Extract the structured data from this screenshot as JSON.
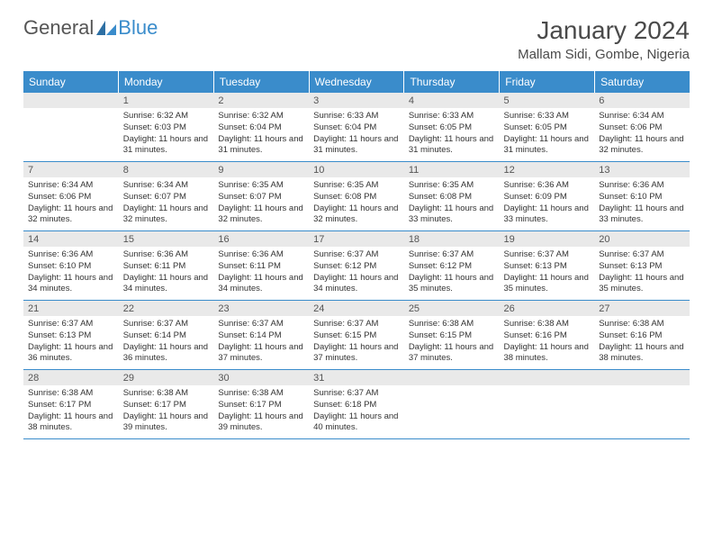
{
  "brand": {
    "general": "General",
    "blue": "Blue"
  },
  "header": {
    "title": "January 2024",
    "location": "Mallam Sidi, Gombe, Nigeria"
  },
  "colors": {
    "accent": "#3a8ccb",
    "day_bg": "#e9e9e9",
    "text": "#333333",
    "bg": "#ffffff"
  },
  "weekdays": [
    "Sunday",
    "Monday",
    "Tuesday",
    "Wednesday",
    "Thursday",
    "Friday",
    "Saturday"
  ],
  "month": {
    "start_weekday": 1,
    "num_days": 31
  },
  "days": {
    "1": {
      "sunrise": "Sunrise: 6:32 AM",
      "sunset": "Sunset: 6:03 PM",
      "daylight": "Daylight: 11 hours and 31 minutes."
    },
    "2": {
      "sunrise": "Sunrise: 6:32 AM",
      "sunset": "Sunset: 6:04 PM",
      "daylight": "Daylight: 11 hours and 31 minutes."
    },
    "3": {
      "sunrise": "Sunrise: 6:33 AM",
      "sunset": "Sunset: 6:04 PM",
      "daylight": "Daylight: 11 hours and 31 minutes."
    },
    "4": {
      "sunrise": "Sunrise: 6:33 AM",
      "sunset": "Sunset: 6:05 PM",
      "daylight": "Daylight: 11 hours and 31 minutes."
    },
    "5": {
      "sunrise": "Sunrise: 6:33 AM",
      "sunset": "Sunset: 6:05 PM",
      "daylight": "Daylight: 11 hours and 31 minutes."
    },
    "6": {
      "sunrise": "Sunrise: 6:34 AM",
      "sunset": "Sunset: 6:06 PM",
      "daylight": "Daylight: 11 hours and 32 minutes."
    },
    "7": {
      "sunrise": "Sunrise: 6:34 AM",
      "sunset": "Sunset: 6:06 PM",
      "daylight": "Daylight: 11 hours and 32 minutes."
    },
    "8": {
      "sunrise": "Sunrise: 6:34 AM",
      "sunset": "Sunset: 6:07 PM",
      "daylight": "Daylight: 11 hours and 32 minutes."
    },
    "9": {
      "sunrise": "Sunrise: 6:35 AM",
      "sunset": "Sunset: 6:07 PM",
      "daylight": "Daylight: 11 hours and 32 minutes."
    },
    "10": {
      "sunrise": "Sunrise: 6:35 AM",
      "sunset": "Sunset: 6:08 PM",
      "daylight": "Daylight: 11 hours and 32 minutes."
    },
    "11": {
      "sunrise": "Sunrise: 6:35 AM",
      "sunset": "Sunset: 6:08 PM",
      "daylight": "Daylight: 11 hours and 33 minutes."
    },
    "12": {
      "sunrise": "Sunrise: 6:36 AM",
      "sunset": "Sunset: 6:09 PM",
      "daylight": "Daylight: 11 hours and 33 minutes."
    },
    "13": {
      "sunrise": "Sunrise: 6:36 AM",
      "sunset": "Sunset: 6:10 PM",
      "daylight": "Daylight: 11 hours and 33 minutes."
    },
    "14": {
      "sunrise": "Sunrise: 6:36 AM",
      "sunset": "Sunset: 6:10 PM",
      "daylight": "Daylight: 11 hours and 34 minutes."
    },
    "15": {
      "sunrise": "Sunrise: 6:36 AM",
      "sunset": "Sunset: 6:11 PM",
      "daylight": "Daylight: 11 hours and 34 minutes."
    },
    "16": {
      "sunrise": "Sunrise: 6:36 AM",
      "sunset": "Sunset: 6:11 PM",
      "daylight": "Daylight: 11 hours and 34 minutes."
    },
    "17": {
      "sunrise": "Sunrise: 6:37 AM",
      "sunset": "Sunset: 6:12 PM",
      "daylight": "Daylight: 11 hours and 34 minutes."
    },
    "18": {
      "sunrise": "Sunrise: 6:37 AM",
      "sunset": "Sunset: 6:12 PM",
      "daylight": "Daylight: 11 hours and 35 minutes."
    },
    "19": {
      "sunrise": "Sunrise: 6:37 AM",
      "sunset": "Sunset: 6:13 PM",
      "daylight": "Daylight: 11 hours and 35 minutes."
    },
    "20": {
      "sunrise": "Sunrise: 6:37 AM",
      "sunset": "Sunset: 6:13 PM",
      "daylight": "Daylight: 11 hours and 35 minutes."
    },
    "21": {
      "sunrise": "Sunrise: 6:37 AM",
      "sunset": "Sunset: 6:13 PM",
      "daylight": "Daylight: 11 hours and 36 minutes."
    },
    "22": {
      "sunrise": "Sunrise: 6:37 AM",
      "sunset": "Sunset: 6:14 PM",
      "daylight": "Daylight: 11 hours and 36 minutes."
    },
    "23": {
      "sunrise": "Sunrise: 6:37 AM",
      "sunset": "Sunset: 6:14 PM",
      "daylight": "Daylight: 11 hours and 37 minutes."
    },
    "24": {
      "sunrise": "Sunrise: 6:37 AM",
      "sunset": "Sunset: 6:15 PM",
      "daylight": "Daylight: 11 hours and 37 minutes."
    },
    "25": {
      "sunrise": "Sunrise: 6:38 AM",
      "sunset": "Sunset: 6:15 PM",
      "daylight": "Daylight: 11 hours and 37 minutes."
    },
    "26": {
      "sunrise": "Sunrise: 6:38 AM",
      "sunset": "Sunset: 6:16 PM",
      "daylight": "Daylight: 11 hours and 38 minutes."
    },
    "27": {
      "sunrise": "Sunrise: 6:38 AM",
      "sunset": "Sunset: 6:16 PM",
      "daylight": "Daylight: 11 hours and 38 minutes."
    },
    "28": {
      "sunrise": "Sunrise: 6:38 AM",
      "sunset": "Sunset: 6:17 PM",
      "daylight": "Daylight: 11 hours and 38 minutes."
    },
    "29": {
      "sunrise": "Sunrise: 6:38 AM",
      "sunset": "Sunset: 6:17 PM",
      "daylight": "Daylight: 11 hours and 39 minutes."
    },
    "30": {
      "sunrise": "Sunrise: 6:38 AM",
      "sunset": "Sunset: 6:17 PM",
      "daylight": "Daylight: 11 hours and 39 minutes."
    },
    "31": {
      "sunrise": "Sunrise: 6:37 AM",
      "sunset": "Sunset: 6:18 PM",
      "daylight": "Daylight: 11 hours and 40 minutes."
    }
  }
}
